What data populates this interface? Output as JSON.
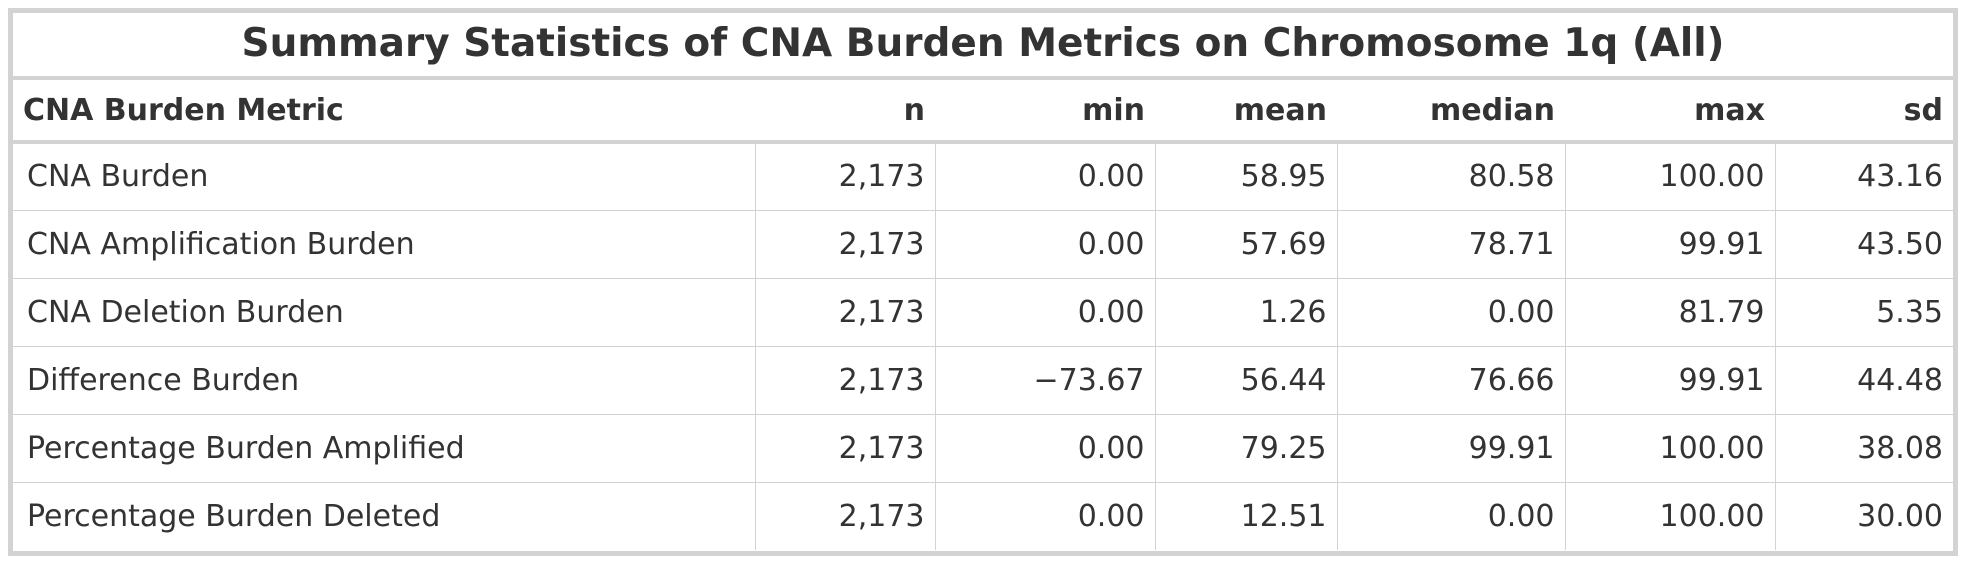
{
  "table": {
    "title": "Summary Statistics of CNA Burden Metrics on Chromosome 1q (All)",
    "columns": [
      "CNA Burden Metric",
      "n",
      "min",
      "mean",
      "median",
      "max",
      "sd"
    ],
    "rows": [
      [
        "CNA Burden",
        "2,173",
        "0.00",
        "58.95",
        "80.58",
        "100.00",
        "43.16"
      ],
      [
        "CNA Amplification Burden",
        "2,173",
        "0.00",
        "57.69",
        "78.71",
        "99.91",
        "43.50"
      ],
      [
        "CNA Deletion Burden",
        "2,173",
        "0.00",
        "1.26",
        "0.00",
        "81.79",
        "5.35"
      ],
      [
        "Difference Burden",
        "2,173",
        "−73.67",
        "56.44",
        "76.66",
        "99.91",
        "44.48"
      ],
      [
        "Percentage Burden Amplified",
        "2,173",
        "0.00",
        "79.25",
        "99.91",
        "100.00",
        "38.08"
      ],
      [
        "Percentage Burden Deleted",
        "2,173",
        "0.00",
        "12.51",
        "0.00",
        "100.00",
        "30.00"
      ]
    ]
  }
}
